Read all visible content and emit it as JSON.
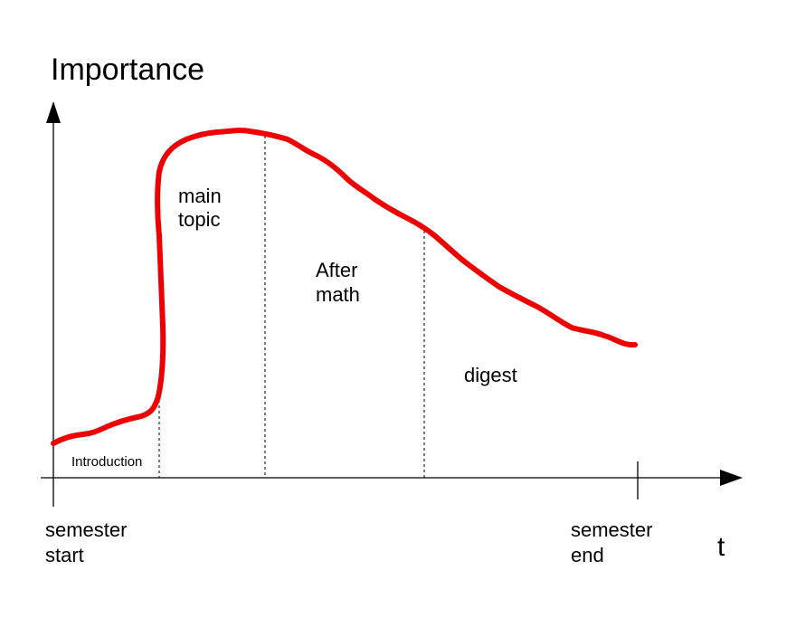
{
  "y_axis_label": "Importance",
  "x_axis_label": "t",
  "x_start_label": {
    "line1": "semester",
    "line2": "start"
  },
  "x_end_label": {
    "line1": "semester",
    "line2": "end"
  },
  "phases": [
    {
      "key": "introduction",
      "line1": "Introduction",
      "line2": ""
    },
    {
      "key": "main-topic",
      "line1": "main",
      "line2": "topic"
    },
    {
      "key": "after-math",
      "line1": "After",
      "line2": "math"
    },
    {
      "key": "digest",
      "line1": "digest",
      "line2": ""
    }
  ],
  "colors": {
    "curve": "#ee0000",
    "axis": "#000000",
    "background": "#ffffff"
  }
}
